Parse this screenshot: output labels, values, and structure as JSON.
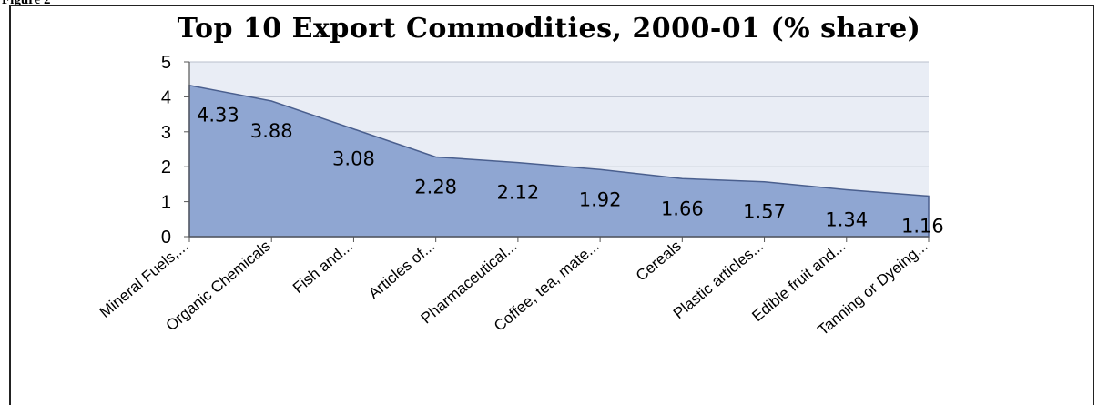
{
  "figure_label": "Figure 2",
  "chart_data": {
    "type": "area",
    "title": "Top 10 Export Commodities, 2000-01 (% share)",
    "categories": [
      "Mineral Fuels,...",
      "Organic Chemicals",
      "Fish and...",
      "Articles of...",
      "Pharmaceutical...",
      "Coffee, tea, mate...",
      "Cereals",
      "Plastic articles...",
      "Edible fruit and...",
      "Tanning or Dyeing..."
    ],
    "values": [
      4.33,
      3.88,
      3.08,
      2.28,
      2.12,
      1.92,
      1.66,
      1.57,
      1.34,
      1.16
    ],
    "data_labels": [
      "4.33",
      "3.88",
      "3.08",
      "2.28",
      "2.12",
      "1.92",
      "1.66",
      "1.57",
      "1.34",
      "1.16"
    ],
    "yticks": [
      "0",
      "1",
      "2",
      "3",
      "4",
      "5"
    ],
    "ylim": [
      0,
      5
    ],
    "xlabel": "",
    "ylabel": "",
    "grid": "horizontal",
    "colors": {
      "fill": "#8fa6d2",
      "stroke": "#4a5f8e",
      "plot_bg": "#e9edf5",
      "grid": "#b9bfcc"
    }
  }
}
